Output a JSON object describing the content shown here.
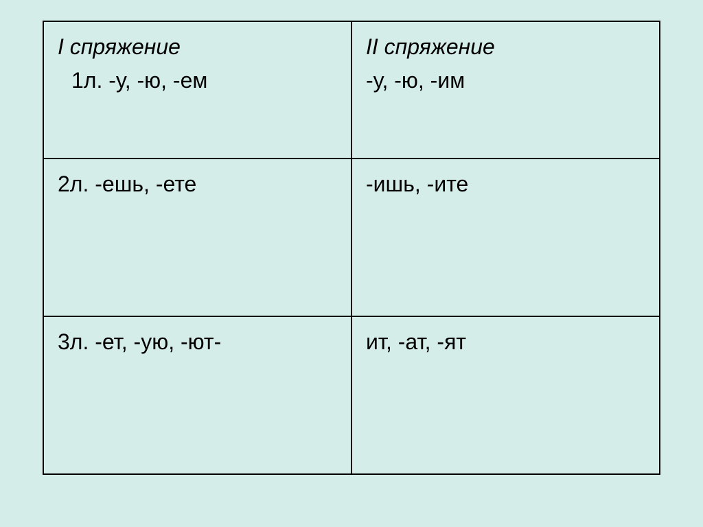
{
  "table": {
    "background_color": "#d4ede8",
    "border_color": "#000000",
    "text_color": "#000000",
    "font_size": 32,
    "columns": [
      "I спряжение",
      "II спряжение"
    ],
    "rows": [
      {
        "col1_header": "I спряжение",
        "col1_endings": "1л. -у, -ю, -ем",
        "col2_header": "II спряжение",
        "col2_endings": "-у, -ю, -им"
      },
      {
        "col1": "2л. -ешь, -ете",
        "col2": "-ишь, -ите"
      },
      {
        "col1": "3л. -ет, -ую, -ют-",
        "col2": "ит, -ат, -ят"
      }
    ]
  }
}
